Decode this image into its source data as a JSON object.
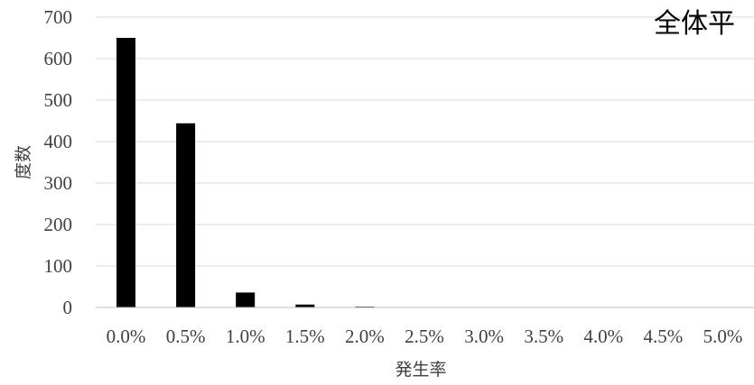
{
  "chart_data": {
    "type": "bar",
    "title": "全体平",
    "xlabel": "発生率",
    "ylabel": "度数",
    "categories": [
      "0.0%",
      "0.5%",
      "1.0%",
      "1.5%",
      "2.0%",
      "2.5%",
      "3.0%",
      "3.5%",
      "4.0%",
      "4.5%",
      "5.0%"
    ],
    "values": [
      650,
      444,
      36,
      7,
      2,
      0,
      0,
      0,
      0,
      0,
      0
    ],
    "ylim": [
      0,
      700
    ],
    "yticks": [
      "0",
      "100",
      "200",
      "300",
      "400",
      "500",
      "600",
      "700"
    ],
    "grid": true,
    "legend": "none",
    "colors": {
      "bar": "#000000",
      "grid": "#d9d9d9",
      "axis": "#bfbfbf",
      "text": "#404040"
    }
  }
}
